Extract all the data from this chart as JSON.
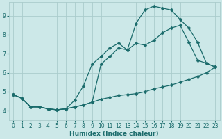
{
  "background_color": "#cce8e8",
  "grid_color": "#aacccc",
  "line_color": "#1a6b6b",
  "marker_color": "#1a6b6b",
  "xlabel": "Humidex (Indice chaleur)",
  "xlim": [
    -0.5,
    23.5
  ],
  "ylim": [
    3.5,
    9.7
  ],
  "xticks": [
    0,
    1,
    2,
    3,
    4,
    5,
    6,
    7,
    8,
    9,
    10,
    11,
    12,
    13,
    14,
    15,
    16,
    17,
    18,
    19,
    20,
    21,
    22,
    23
  ],
  "yticks": [
    4,
    5,
    6,
    7,
    8,
    9
  ],
  "curve1_x": [
    0,
    1,
    2,
    3,
    4,
    5,
    6,
    7,
    8,
    9,
    10,
    11,
    12,
    13,
    14,
    15,
    16,
    17,
    18,
    19,
    20,
    21,
    22,
    23
  ],
  "curve1_y": [
    4.85,
    4.65,
    4.2,
    4.2,
    4.1,
    4.05,
    4.1,
    4.2,
    4.3,
    4.45,
    4.6,
    4.7,
    4.8,
    4.85,
    4.9,
    5.0,
    5.15,
    5.25,
    5.35,
    5.5,
    5.65,
    5.8,
    6.0,
    6.3
  ],
  "curve2_x": [
    0,
    1,
    2,
    3,
    4,
    5,
    6,
    7,
    8,
    9,
    10,
    11,
    12,
    13,
    14,
    15,
    16,
    17,
    18,
    19,
    20,
    21,
    22,
    23
  ],
  "curve2_y": [
    4.85,
    4.65,
    4.2,
    4.2,
    4.1,
    4.05,
    4.1,
    4.55,
    5.3,
    6.45,
    6.85,
    7.3,
    7.55,
    7.2,
    8.6,
    9.3,
    9.5,
    9.4,
    9.3,
    8.8,
    8.35,
    7.6,
    6.5,
    6.3
  ],
  "curve3_x": [
    0,
    1,
    2,
    3,
    4,
    5,
    6,
    7,
    8,
    9,
    10,
    11,
    12,
    13,
    14,
    15,
    16,
    17,
    18,
    19,
    20,
    21,
    22,
    23
  ],
  "curve3_y": [
    4.85,
    4.65,
    4.2,
    4.2,
    4.1,
    4.05,
    4.1,
    4.2,
    4.3,
    4.45,
    6.45,
    6.85,
    7.3,
    7.2,
    7.55,
    7.45,
    7.7,
    8.1,
    8.35,
    8.5,
    7.6,
    6.65,
    6.5,
    6.3
  ],
  "marker_size": 2.5,
  "linewidth": 0.9
}
